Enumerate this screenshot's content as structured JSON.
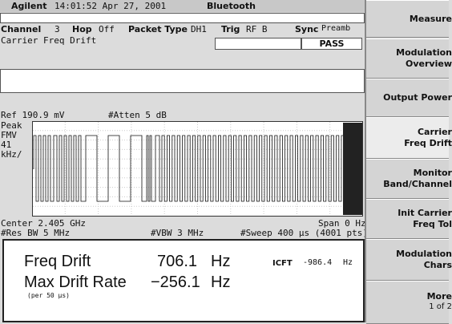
{
  "header": {
    "brand": "Agilent",
    "datetime": "14:01:52  Apr 27, 2001",
    "mode": "Bluetooth"
  },
  "settings": {
    "channel_label": "Channel",
    "channel": "3",
    "hop_label": "Hop",
    "hop": "Off",
    "packet_label": "Packet Type",
    "packet": "DH1",
    "trig_label": "Trig",
    "trig": "RF B",
    "sync_label": "Sync",
    "sync": "Preamb",
    "measurement": "Carrier Freq Drift",
    "status": "PASS"
  },
  "graph": {
    "ref": "Ref 190.9 mV",
    "atten": "#Atten 5 dB",
    "scale_lines": [
      "Peak",
      "FMV",
      "41",
      "kHz/"
    ],
    "center": "Center 2.405 GHz",
    "span": "Span 0 Hz",
    "res_bw": "#Res BW 5 MHz",
    "vbw": "#VBW 3 MHz",
    "sweep": "#Sweep 400 µs (4001 pts)"
  },
  "results": {
    "drift_label": "Freq Drift",
    "drift_value": "706.1",
    "drift_unit": "Hz",
    "icft_label": "ICFT",
    "icft_value": "-986.4",
    "icft_unit": "Hz",
    "rate_label": "Max Drift Rate",
    "rate_value": "−256.1",
    "rate_unit": "Hz",
    "rate_note": "(per 50 µs)"
  },
  "softkeys": [
    {
      "lines": [
        "Measure"
      ]
    },
    {
      "lines": [
        "Modulation",
        "Overview"
      ]
    },
    {
      "lines": [
        "Output Power"
      ]
    },
    {
      "lines": [
        "Carrier",
        "Freq Drift"
      ]
    },
    {
      "lines": [
        "Monitor",
        "Band/Channel"
      ]
    },
    {
      "lines": [
        "Init Carrier",
        "Freq Tol"
      ]
    },
    {
      "lines": [
        "Modulation",
        "Chars"
      ]
    },
    {
      "lines": [
        "More",
        "1 of 2"
      ]
    }
  ]
}
